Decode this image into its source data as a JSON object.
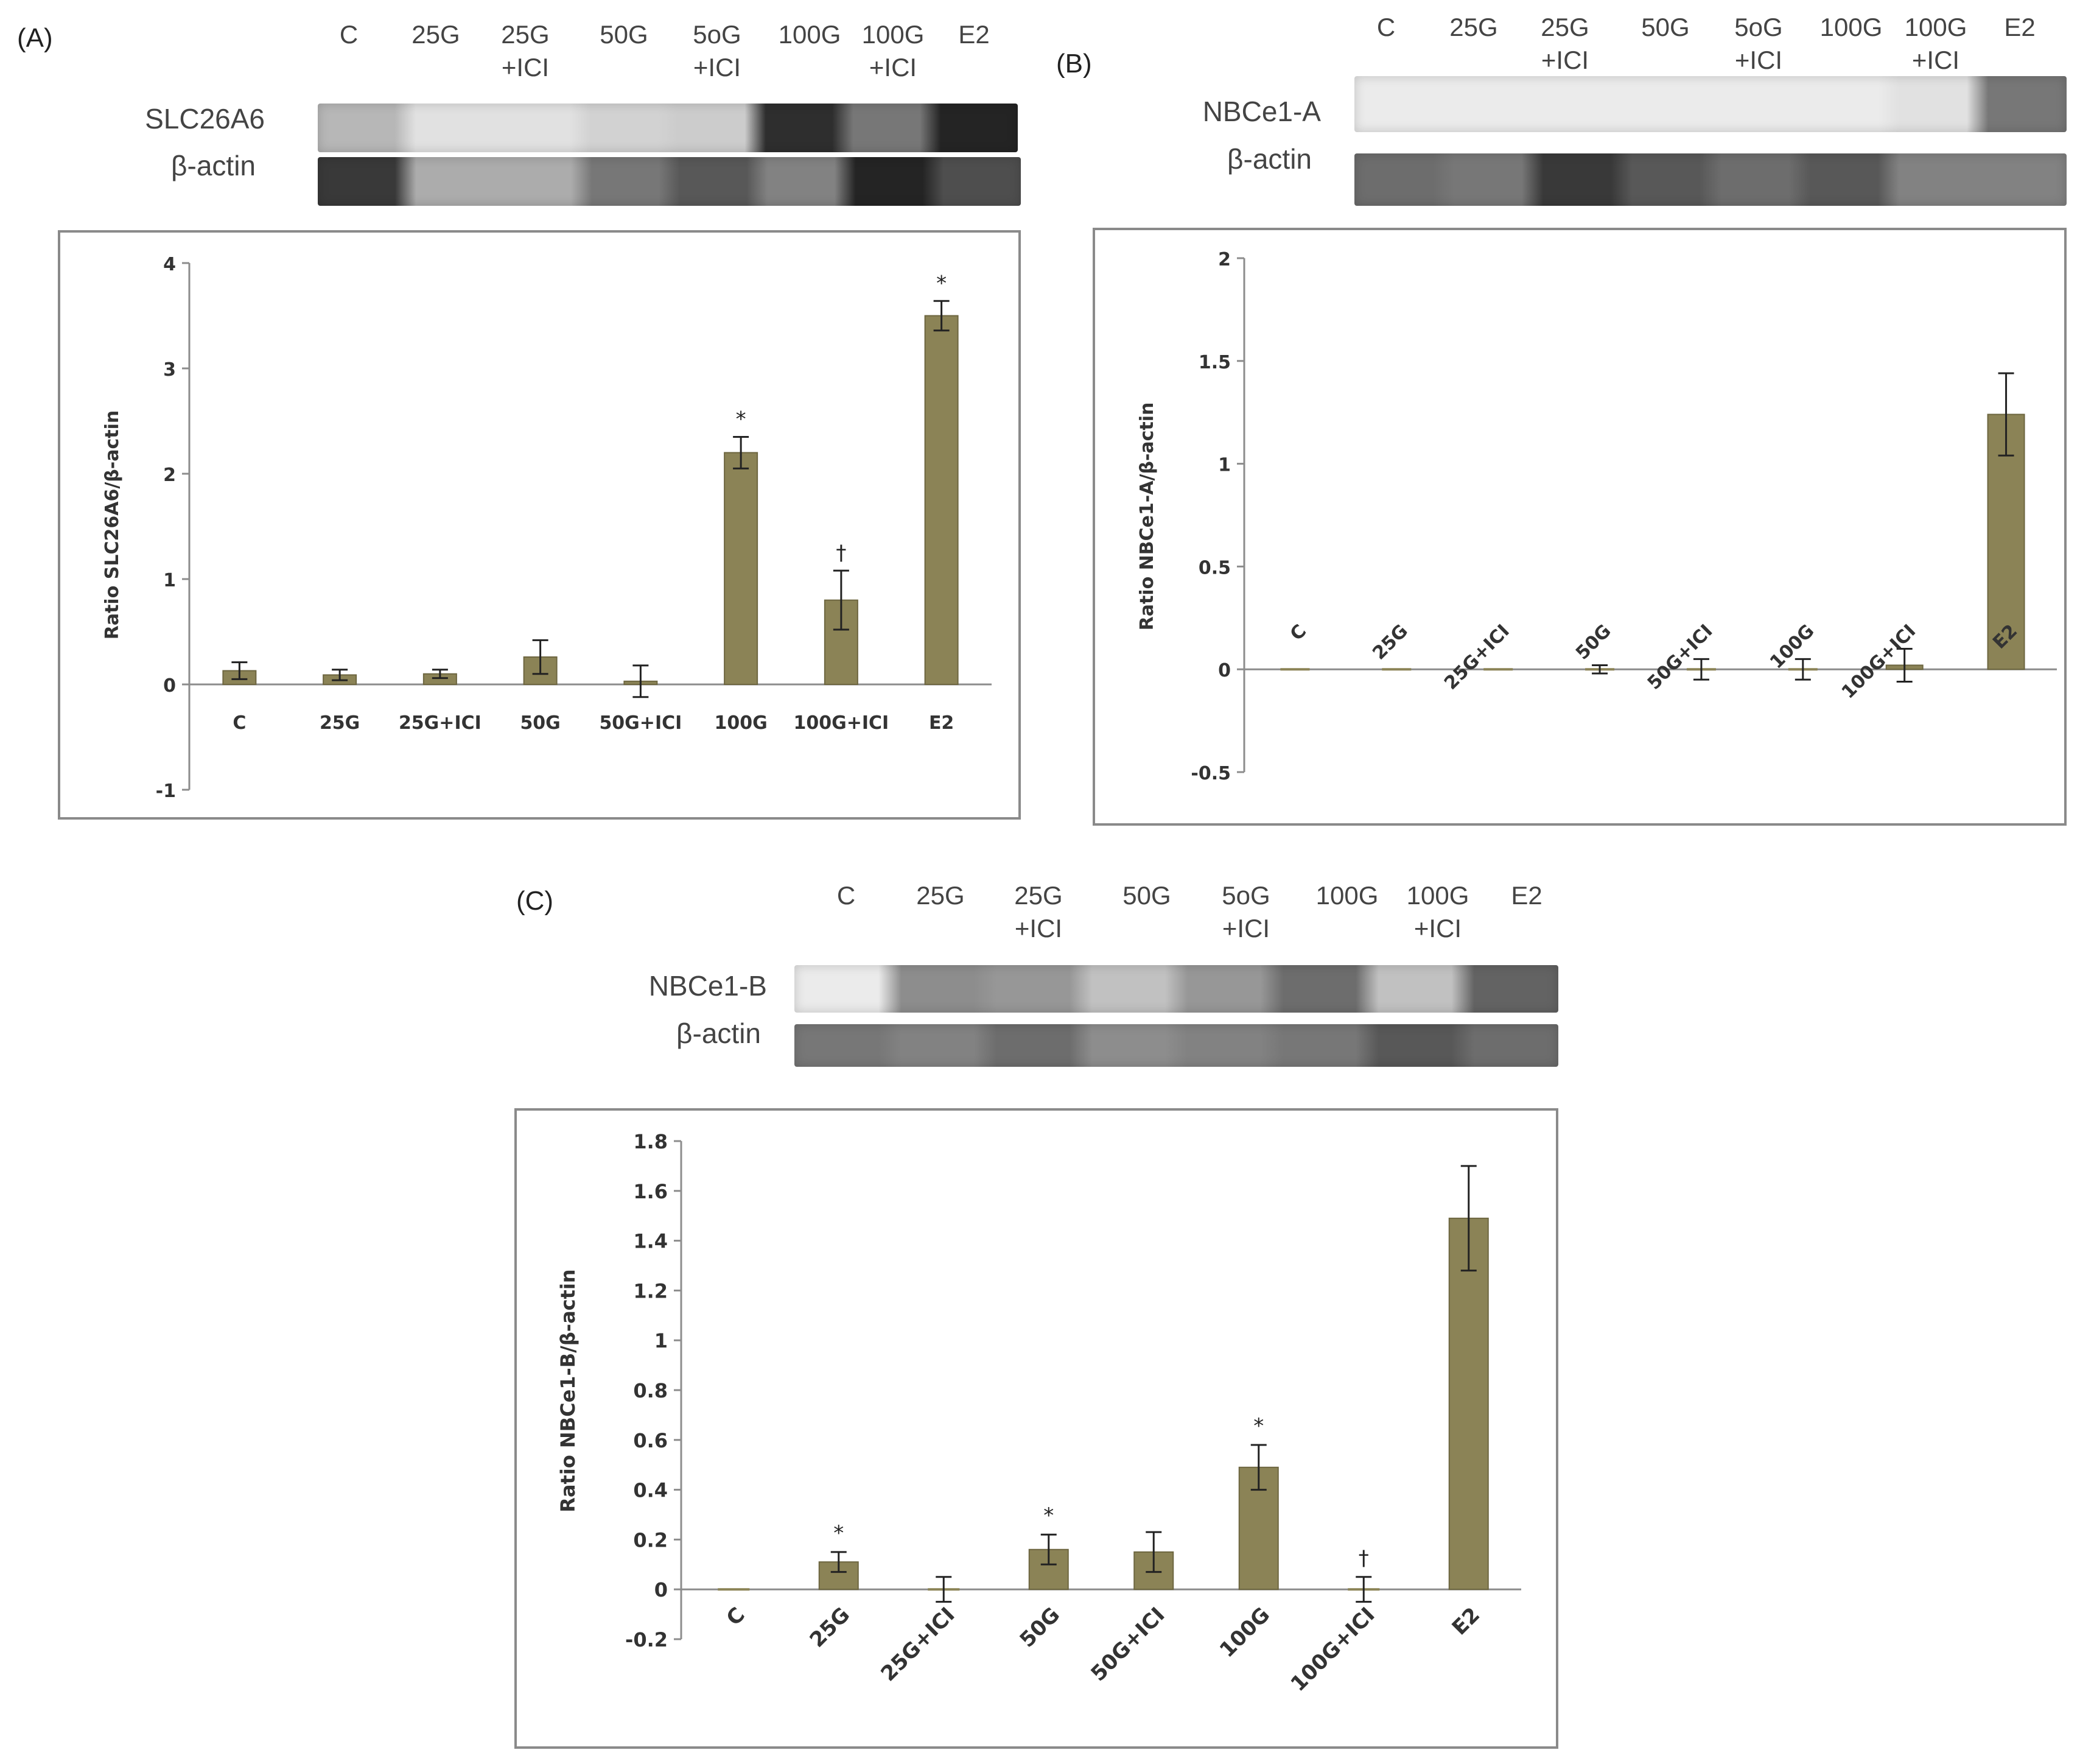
{
  "colors": {
    "bar": "#8b8356",
    "bar_edge": "#6d6640",
    "axis": "#8c8c8c",
    "text": "#333333"
  },
  "panels": [
    {
      "id": "A",
      "label": "(A)",
      "lanes": [
        [
          "C"
        ],
        [
          "25G"
        ],
        [
          "25G",
          "+ICI"
        ],
        [
          "50G"
        ],
        [
          "5oG",
          "+ICI"
        ],
        [
          "100G"
        ],
        [
          "100G",
          "+ICI"
        ],
        [
          "E2"
        ]
      ],
      "bands": [
        "SLC26A6",
        "β-actin"
      ],
      "band_intensity": [
        [
          0.25,
          0.05,
          0.05,
          0.12,
          0.15,
          0.9,
          0.55,
          0.95
        ],
        [
          0.85,
          0.3,
          0.3,
          0.55,
          0.7,
          0.5,
          0.95,
          0.75
        ]
      ]
    },
    {
      "id": "B",
      "label": "(B)",
      "lanes": [
        [
          "C"
        ],
        [
          "25G"
        ],
        [
          "25G",
          "+ICI"
        ],
        [
          "50G"
        ],
        [
          "5oG",
          "+ICI"
        ],
        [
          "100G"
        ],
        [
          "100G",
          "+ICI"
        ],
        [
          "E2"
        ]
      ],
      "bands": [
        "NBCe1-A",
        "β-actin"
      ],
      "band_intensity": [
        [
          0.0,
          0.0,
          0.0,
          0.0,
          0.0,
          0.0,
          0.05,
          0.55
        ],
        [
          0.6,
          0.55,
          0.85,
          0.7,
          0.6,
          0.7,
          0.5,
          0.5
        ]
      ]
    },
    {
      "id": "C",
      "label": "(C)",
      "lanes": [
        [
          "C"
        ],
        [
          "25G"
        ],
        [
          "25G",
          "+ICI"
        ],
        [
          "50G"
        ],
        [
          "5oG",
          "+ICI"
        ],
        [
          "100G"
        ],
        [
          "100G",
          "+ICI"
        ],
        [
          "E2"
        ]
      ],
      "bands": [
        "NBCe1-B",
        "β-actin"
      ],
      "band_intensity": [
        [
          0.0,
          0.45,
          0.4,
          0.2,
          0.4,
          0.6,
          0.2,
          0.65
        ],
        [
          0.55,
          0.5,
          0.6,
          0.45,
          0.5,
          0.55,
          0.7,
          0.6
        ]
      ]
    }
  ],
  "chart_data": [
    {
      "type": "bar",
      "panel": "A",
      "title": "",
      "xlabel": "",
      "ylabel": "Ratio SLC26A6/β-actin",
      "ylim": [
        -1,
        4
      ],
      "yticks": [
        "-1",
        "0",
        "1",
        "2",
        "3",
        "4"
      ],
      "categories": [
        "C",
        "25G",
        "25G+ICI",
        "50G",
        "50G+ICI",
        "100G",
        "100G+ICI",
        "E2"
      ],
      "values": [
        0.13,
        0.09,
        0.1,
        0.26,
        0.03,
        2.2,
        0.8,
        3.5
      ],
      "errors": [
        0.08,
        0.05,
        0.04,
        0.16,
        0.15,
        0.15,
        0.28,
        0.14
      ],
      "annotations": [
        "",
        "",
        "",
        "",
        "",
        "*",
        "†",
        "*"
      ],
      "rotated_labels": false
    },
    {
      "type": "bar",
      "panel": "B",
      "title": "",
      "xlabel": "",
      "ylabel": "Ratio NBCe1-A/β-actin",
      "ylim": [
        -0.5,
        2
      ],
      "yticks": [
        "-0.5",
        "0",
        "0.5",
        "1",
        "1.5",
        "2"
      ],
      "categories": [
        "C",
        "25G",
        "25G+ICI",
        "50G",
        "50G+ICI",
        "100G",
        "100G+ICI",
        "E2"
      ],
      "values": [
        0.0,
        0.0,
        0.0,
        0.0,
        0.0,
        0.0,
        0.02,
        1.24
      ],
      "errors": [
        0.0,
        0.0,
        0.0,
        0.02,
        0.05,
        0.05,
        0.08,
        0.2
      ],
      "annotations": [
        "",
        "",
        "",
        "",
        "",
        "",
        "",
        ""
      ],
      "rotated_labels": true
    },
    {
      "type": "bar",
      "panel": "C",
      "title": "",
      "xlabel": "",
      "ylabel": "Ratio NBCe1-B/β-actin",
      "ylim": [
        -0.2,
        1.8
      ],
      "yticks": [
        "-0.2",
        "0",
        "0.2",
        "0.4",
        "0.6",
        "0.8",
        "1",
        "1.2",
        "1.4",
        "1.6",
        "1.8"
      ],
      "categories": [
        "C",
        "25G",
        "25G+ICI",
        "50G",
        "50G+ICI",
        "100G",
        "100G+ICI",
        "E2"
      ],
      "values": [
        0.0,
        0.11,
        0.0,
        0.16,
        0.15,
        0.49,
        0.0,
        1.49
      ],
      "errors": [
        0.0,
        0.04,
        0.05,
        0.06,
        0.08,
        0.09,
        0.05,
        0.21
      ],
      "annotations": [
        "",
        "*",
        "",
        "*",
        "",
        "*",
        "†",
        ""
      ],
      "rotated_labels": true
    }
  ]
}
